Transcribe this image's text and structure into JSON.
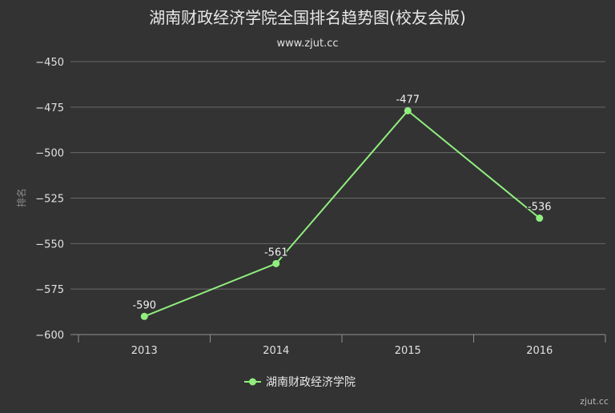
{
  "chart_data": {
    "type": "line",
    "title": "湖南财政经济学院全国排名趋势图(校友会版)",
    "subtitle": "www.zjut.cc",
    "ylabel": "排名",
    "xlabel": "",
    "categories": [
      "2013",
      "2014",
      "2015",
      "2016"
    ],
    "series": [
      {
        "name": "湖南财政经济学院",
        "values": [
          -590,
          -561,
          -477,
          -536
        ],
        "color": "#90ee7e"
      }
    ],
    "ylim": [
      -600,
      -450
    ],
    "yticks": [
      -450,
      -475,
      -500,
      -525,
      -550,
      -575,
      -600
    ],
    "grid": true,
    "legend": "bottom-center",
    "watermark": "zjut.cc"
  }
}
